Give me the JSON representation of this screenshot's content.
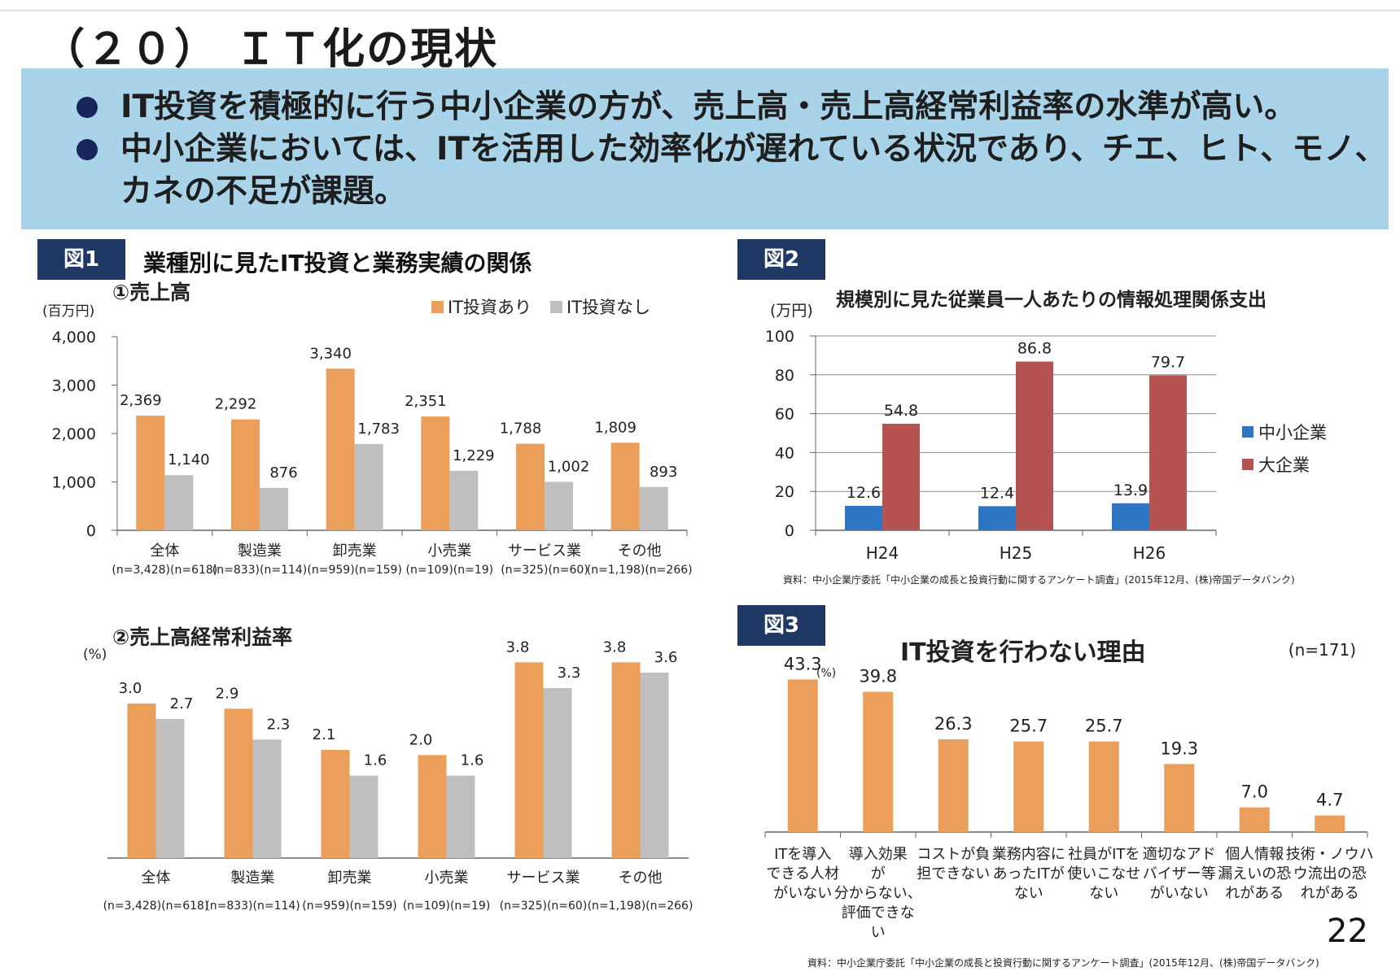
{
  "page": {
    "title": "（２０） ＩＴ化の現状",
    "bullets": [
      "IT投資を積極的に行う中小企業の方が、売上高・売上高経常利益率の水準が高い。",
      "中小企業においては、ITを活用した効率化が遅れている状況であり、チエ、ヒト、モノ、カネの不足が課題。"
    ],
    "page_number": "22",
    "colors": {
      "orange": "#eb9f5b",
      "gray": "#bfbfbf",
      "blue": "#2e75c4",
      "red": "#b55252",
      "navy": "#1f3864",
      "band": "#a9d3e8"
    }
  },
  "fig1": {
    "label": "図1",
    "title": "業種別に見たIT投資と業務実績の関係",
    "categories": [
      "全体",
      "製造業",
      "卸売業",
      "小売業",
      "サービス業",
      "その他"
    ],
    "n_labels": [
      "(n=3,428)(n=618)",
      "(n=833)(n=114)",
      "(n=959)(n=159)",
      "(n=109)(n=19)",
      "(n=325)(n=60)",
      "(n=1,198)(n=266)"
    ]
  },
  "fig2": {
    "label": "図2",
    "source": "資料：中小企業庁委託「中小企業の成長と投資行動に関するアンケート調査」(2015年12月、(株)帝国データバンク)"
  },
  "fig3": {
    "label": "図3",
    "n_note": "(n=171)",
    "source": "資料：中小企業庁委託「中小企業の成長と投資行動に関するアンケート調査」(2015年12月、(株)帝国データバンク)"
  },
  "chart_data": [
    {
      "id": "sales",
      "type": "bar",
      "title": "①売上高",
      "ylabel": "(百万円)",
      "ylim": [
        0,
        4000
      ],
      "yticks": [
        0,
        1000,
        2000,
        3000,
        4000
      ],
      "ytick_labels": [
        "0",
        "1,000",
        "2,000",
        "3,000",
        "4,000"
      ],
      "categories": [
        "全体",
        "製造業",
        "卸売業",
        "小売業",
        "サービス業",
        "その他"
      ],
      "series": [
        {
          "name": "IT投資あり",
          "values": [
            2369,
            2292,
            3340,
            2351,
            1788,
            1809
          ],
          "labels": [
            "2,369",
            "2,292",
            "3,340",
            "2,351",
            "1,788",
            "1,809"
          ]
        },
        {
          "name": "IT投資なし",
          "values": [
            1140,
            876,
            1783,
            1229,
            1002,
            893
          ],
          "labels": [
            "1,140",
            "876",
            "1,783",
            "1,229",
            "1,002",
            "893"
          ]
        }
      ],
      "legend": "top-right"
    },
    {
      "id": "margin",
      "type": "bar",
      "title": "②売上高経常利益率",
      "ylabel": "(%)",
      "ylim": [
        0,
        4.5
      ],
      "categories": [
        "全体",
        "製造業",
        "卸売業",
        "小売業",
        "サービス業",
        "その他"
      ],
      "series": [
        {
          "name": "IT投資あり",
          "values": [
            3.0,
            2.9,
            2.1,
            2.0,
            3.8,
            3.8
          ],
          "labels": [
            "3.0",
            "2.9",
            "2.1",
            "2.0",
            "3.8",
            "3.8"
          ]
        },
        {
          "name": "IT投資なし",
          "values": [
            2.7,
            2.3,
            1.6,
            1.6,
            3.3,
            3.6
          ],
          "labels": [
            "2.7",
            "2.3",
            "1.6",
            "1.6",
            "3.3",
            "3.6"
          ]
        }
      ]
    },
    {
      "id": "it_spend",
      "type": "bar",
      "title": "規模別に見た従業員一人あたりの情報処理関係支出",
      "ylabel": "(万円)",
      "ylim": [
        0,
        100
      ],
      "yticks": [
        0,
        20,
        40,
        60,
        80,
        100
      ],
      "ytick_labels": [
        "0",
        "20",
        "40",
        "60",
        "80",
        "100"
      ],
      "categories": [
        "H24",
        "H25",
        "H26"
      ],
      "series": [
        {
          "name": "中小企業",
          "values": [
            12.6,
            12.4,
            13.9
          ],
          "labels": [
            "12.6",
            "12.4",
            "13.9"
          ]
        },
        {
          "name": "大企業",
          "values": [
            54.8,
            86.8,
            79.7
          ],
          "labels": [
            "54.8",
            "86.8",
            "79.7"
          ]
        }
      ],
      "grid": true,
      "legend": "right"
    },
    {
      "id": "reasons",
      "type": "bar",
      "title": "IT投資を行わない理由",
      "ylabel": "(%)",
      "ylim": [
        0,
        45
      ],
      "categories": [
        "ITを導入\nできる人材\nがいない",
        "導入効果\nが\n分からない、\n評価できな\nい",
        "コストが負\n担できない",
        "業務内容に\nあったITが\nない",
        "社員がITを\n使いこなせ\nない",
        "適切なアド\nバイザー等\nがいない",
        "個人情報\n漏えいの恐\nれがある",
        "技術・ノウハ\nウ流出の恐\nれがある"
      ],
      "series": [
        {
          "name": "IT投資を行わない理由",
          "values": [
            43.3,
            39.8,
            26.3,
            25.7,
            25.7,
            19.3,
            7.0,
            4.7
          ],
          "labels": [
            "43.3",
            "39.8",
            "26.3",
            "25.7",
            "25.7",
            "19.3",
            "7.0",
            "4.7"
          ]
        }
      ]
    }
  ]
}
